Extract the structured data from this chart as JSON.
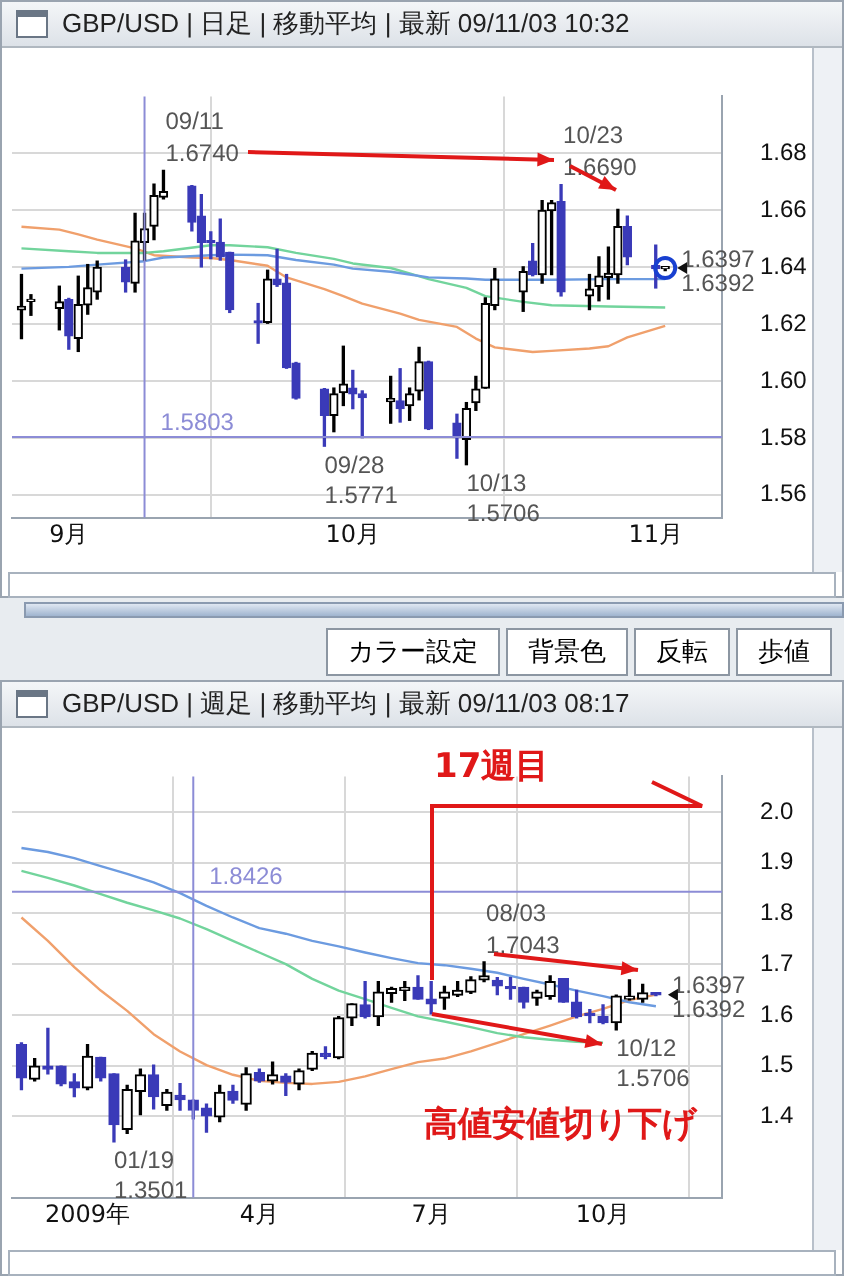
{
  "chart_data": [
    {
      "type": "candlestick",
      "title": "GBP/USD | 日足 | 移動平均 | 最新 09/11/03 10:32",
      "colors": [
        "#000000",
        "#000000",
        "#000000",
        "#3a3ab8",
        "#000000",
        "#000000",
        "#000000",
        "#3a3ab8",
        "#000000",
        "#000000",
        "#000000",
        "#000000",
        "#3a3ab8",
        "#3a3ab8",
        "#3a3ab8",
        "#3a3ab8",
        "#3a3ab8",
        "#3a3ab8",
        "#000000",
        "#3a3ab8",
        "#3a3ab8",
        "#3a3ab8",
        "#3a3ab8",
        "#000000",
        "#000000",
        "#3a3ab8",
        "#3a3ab8",
        "#000000",
        "#3a3ab8",
        "#000000",
        "#000000",
        "#3a3ab8",
        "#3a3ab8",
        "#000000",
        "#000000",
        "#000000",
        "#000000",
        "#000000",
        "#3a3ab8",
        "#000000",
        "#000000",
        "#3a3ab8",
        "#000000",
        "#000000",
        "#000000",
        "#000000",
        "#3a3ab8",
        "#3a3ab8",
        "#000000"
      ],
      "x": [
        "2009-08-27",
        "2009-08-28",
        "2009-08-31",
        "2009-09-01",
        "2009-09-02",
        "2009-09-03",
        "2009-09-04",
        "2009-09-07",
        "2009-09-08",
        "2009-09-09",
        "2009-09-10",
        "2009-09-11",
        "2009-09-14",
        "2009-09-15",
        "2009-09-16",
        "2009-09-17",
        "2009-09-18",
        "2009-09-21",
        "2009-09-22",
        "2009-09-23",
        "2009-09-24",
        "2009-09-25",
        "2009-09-28",
        "2009-09-29",
        "2009-09-30",
        "2009-10-01",
        "2009-10-02",
        "2009-10-05",
        "2009-10-06",
        "2009-10-07",
        "2009-10-08",
        "2009-10-09",
        "2009-10-12",
        "2009-10-13",
        "2009-10-14",
        "2009-10-15",
        "2009-10-16",
        "2009-10-19",
        "2009-10-20",
        "2009-10-21",
        "2009-10-22",
        "2009-10-23",
        "2009-10-26",
        "2009-10-27",
        "2009-10-28",
        "2009-10-29",
        "2009-10-30",
        "2009-11-02",
        "2009-11-03"
      ],
      "ohlc": [
        [
          1.625,
          1.6374,
          1.6149,
          1.6262
        ],
        [
          1.628,
          1.6303,
          1.6231,
          1.6285
        ],
        [
          1.6255,
          1.6333,
          1.618,
          1.6278
        ],
        [
          1.6286,
          1.629,
          1.6112,
          1.6159
        ],
        [
          1.615,
          1.6368,
          1.6104,
          1.6268
        ],
        [
          1.6268,
          1.6409,
          1.6235,
          1.6327
        ],
        [
          1.6313,
          1.6421,
          1.6288,
          1.6399
        ],
        [
          1.6399,
          1.6425,
          1.6313,
          1.6348
        ],
        [
          1.6344,
          1.6589,
          1.6313,
          1.6491
        ],
        [
          1.6487,
          1.6589,
          1.6425,
          1.6534
        ],
        [
          1.6544,
          1.6692,
          1.6497,
          1.6651
        ],
        [
          1.6646,
          1.674,
          1.664,
          1.6665
        ],
        [
          1.6685,
          1.6686,
          1.6528,
          1.6558
        ],
        [
          1.6579,
          1.6655,
          1.6401,
          1.6487
        ],
        [
          1.6493,
          1.6524,
          1.643,
          1.6486
        ],
        [
          1.6487,
          1.6569,
          1.6425,
          1.6436
        ],
        [
          1.6452,
          1.6452,
          1.6241,
          1.6251
        ],
        [
          1.6208,
          1.6272,
          1.6133,
          1.6204
        ],
        [
          1.6206,
          1.6389,
          1.6203,
          1.6358
        ],
        [
          1.6358,
          1.6462,
          1.6333,
          1.6339
        ],
        [
          1.6344,
          1.6374,
          1.6045,
          1.6047
        ],
        [
          1.6063,
          1.6065,
          1.5937,
          1.594
        ],
        [
          1.5971,
          1.5973,
          1.5771,
          1.5879
        ],
        [
          1.5879,
          1.5975,
          1.5822,
          1.5955
        ],
        [
          1.5959,
          1.6122,
          1.5914,
          1.5989
        ],
        [
          1.5975,
          1.6037,
          1.5903,
          1.5955
        ],
        [
          1.5955,
          1.5965,
          1.5801,
          1.5942
        ],
        [
          1.5928,
          1.6016,
          1.5852,
          1.5938
        ],
        [
          1.593,
          1.6043,
          1.5856,
          1.5903
        ],
        [
          1.5914,
          1.5975,
          1.5862,
          1.5955
        ],
        [
          1.5965,
          1.6118,
          1.5934,
          1.6067
        ],
        [
          1.6067,
          1.6069,
          1.583,
          1.5832
        ],
        [
          1.5852,
          1.5883,
          1.5729,
          1.5801
        ],
        [
          1.5795,
          1.5924,
          1.5706,
          1.5903
        ],
        [
          1.5924,
          1.6016,
          1.5897,
          1.5971
        ],
        [
          1.5975,
          1.6292,
          1.5975,
          1.6272
        ],
        [
          1.6266,
          1.6395,
          1.6251,
          1.6358
        ],
        [
          1.6313,
          1.6401,
          1.6245,
          1.6384
        ],
        [
          1.6421,
          1.6483,
          1.637,
          1.6374
        ],
        [
          1.6374,
          1.6634,
          1.6344,
          1.6599
        ],
        [
          1.6599,
          1.6634,
          1.6374,
          1.6626
        ],
        [
          1.663,
          1.669,
          1.6299,
          1.6313
        ],
        [
          1.6299,
          1.6374,
          1.6251,
          1.6323
        ],
        [
          1.6333,
          1.6436,
          1.6282,
          1.6368
        ],
        [
          1.6364,
          1.647,
          1.6288,
          1.6378
        ],
        [
          1.6374,
          1.6603,
          1.6344,
          1.6542
        ],
        [
          1.6542,
          1.6579,
          1.6409,
          1.6436
        ],
        [
          1.6405,
          1.6477,
          1.6327,
          1.6395
        ],
        [
          1.6395,
          1.64,
          1.6388,
          1.6397
        ]
      ],
      "series": [
        {
          "type": "line",
          "color": "#6c9be0",
          "x": [
            "2009-08-27",
            "2009-09-01",
            "2009-09-04",
            "2009-09-09",
            "2009-09-11",
            "2009-09-16",
            "2009-09-18",
            "2009-09-22",
            "2009-09-25",
            "2009-09-29",
            "2009-10-01",
            "2009-10-05",
            "2009-10-07",
            "2009-10-09",
            "2009-10-13",
            "2009-10-15",
            "2009-10-19",
            "2009-10-22",
            "2009-10-28",
            "2009-11-03"
          ],
          "values": [
            1.6395,
            1.6401,
            1.6409,
            1.6421,
            1.6434,
            1.6442,
            1.6444,
            1.6442,
            1.6425,
            1.6409,
            1.6395,
            1.6384,
            1.6374,
            1.6364,
            1.636,
            1.6356,
            1.6356,
            1.6356,
            1.6358,
            1.6358
          ]
        },
        {
          "type": "line",
          "color": "#72d49c",
          "x": [
            "2009-08-27",
            "2009-09-01",
            "2009-09-04",
            "2009-09-09",
            "2009-09-11",
            "2009-09-16",
            "2009-09-18",
            "2009-09-22",
            "2009-09-25",
            "2009-09-29",
            "2009-10-01",
            "2009-10-05",
            "2009-10-07",
            "2009-10-09",
            "2009-10-13",
            "2009-10-15",
            "2009-10-19",
            "2009-10-22",
            "2009-10-28",
            "2009-11-03"
          ],
          "values": [
            1.6466,
            1.6456,
            1.645,
            1.645,
            1.6456,
            1.6477,
            1.6477,
            1.647,
            1.645,
            1.6429,
            1.6413,
            1.6397,
            1.6378,
            1.6358,
            1.6327,
            1.6298,
            1.6278,
            1.6266,
            1.6262,
            1.6258
          ]
        },
        {
          "type": "line",
          "color": "#f0a06c",
          "x": [
            "2009-08-27",
            "2009-08-31",
            "2009-09-02",
            "2009-09-04",
            "2009-09-08",
            "2009-09-10",
            "2009-09-14",
            "2009-09-16",
            "2009-09-18",
            "2009-09-22",
            "2009-09-24",
            "2009-09-28",
            "2009-09-30",
            "2009-10-02",
            "2009-10-06",
            "2009-10-08",
            "2009-10-12",
            "2009-10-14",
            "2009-10-16",
            "2009-10-20",
            "2009-10-22",
            "2009-10-26",
            "2009-10-28",
            "2009-10-30",
            "2009-11-03"
          ],
          "values": [
            1.6542,
            1.6532,
            1.6515,
            1.6497,
            1.6466,
            1.6442,
            1.6434,
            1.6432,
            1.6425,
            1.6405,
            1.6364,
            1.6323,
            1.6298,
            1.6272,
            1.6237,
            1.6215,
            1.619,
            1.6149,
            1.6118,
            1.6102,
            1.6106,
            1.6114,
            1.6122,
            1.6153,
            1.6194
          ]
        }
      ],
      "xlim": [
        "2009-08-26",
        "2009-11-09"
      ],
      "xticks": [
        {
          "value": "2009-09-01",
          "label": "9月"
        },
        {
          "value": "2009-10-01",
          "label": "10月"
        },
        {
          "value": "2009-11-02",
          "label": "11月"
        }
      ],
      "ylim": [
        1.552,
        1.7
      ],
      "yticks": [
        1.56,
        1.58,
        {
          "value": 1.6,
          "label": "1.60"
        },
        1.62,
        1.64,
        1.66,
        1.68
      ],
      "grid": true,
      "ref_lines": [
        {
          "axis": "y",
          "value": 1.5803,
          "label": "1.5803",
          "color": "#8c8cd6"
        },
        {
          "axis": "x",
          "value": "2009-09-09",
          "color": "#8c8cd6"
        }
      ],
      "annotations": [
        {
          "text": "09/11\n1.6740",
          "x": "2009-09-11",
          "y": 1.674
        },
        {
          "text": "10/23\n1.6690",
          "x": "2009-10-23",
          "y": 1.669
        },
        {
          "text": "09/28\n1.5771",
          "x": "2009-09-28",
          "y": 1.5771
        },
        {
          "text": "10/13\n1.5706",
          "x": "2009-10-13",
          "y": 1.5706
        },
        {
          "text": "1.6397\n1.6392",
          "x": "2009-11-03",
          "y": 1.6397
        }
      ]
    },
    {
      "type": "other",
      "annotations": [
        "カラー設定",
        "背景色",
        "反転",
        "歩値"
      ]
    },
    {
      "type": "candlestick",
      "title": "GBP/USD | 週足 | 移動平均 | 最新 09/11/03 08:17",
      "colors": [
        "#3a3ab8",
        "#000000",
        "#3a3ab8",
        "#3a3ab8",
        "#3a3ab8",
        "#000000",
        "#3a3ab8",
        "#3a3ab8",
        "#000000",
        "#000000",
        "#3a3ab8",
        "#000000",
        "#3a3ab8",
        "#3a3ab8",
        "#3a3ab8",
        "#000000",
        "#3a3ab8",
        "#000000",
        "#3a3ab8",
        "#000000",
        "#3a3ab8",
        "#000000",
        "#000000",
        "#3a3ab8",
        "#000000",
        "#000000",
        "#3a3ab8",
        "#000000",
        "#000000",
        "#000000",
        "#3a3ab8",
        "#3a3ab8",
        "#000000",
        "#000000",
        "#000000",
        "#000000",
        "#3a3ab8",
        "#3a3ab8",
        "#3a3ab8",
        "#000000",
        "#000000",
        "#3a3ab8",
        "#3a3ab8",
        "#3a3ab8",
        "#3a3ab8",
        "#000000",
        "#000000",
        "#000000",
        "#3a3ab8"
      ],
      "x": [
        "2008-12-01",
        "2008-12-08",
        "2008-12-15",
        "2008-12-22",
        "2008-12-29",
        "2009-01-05",
        "2009-01-12",
        "2009-01-19",
        "2009-01-26",
        "2009-02-02",
        "2009-02-09",
        "2009-02-16",
        "2009-02-23",
        "2009-03-02",
        "2009-03-09",
        "2009-03-16",
        "2009-03-23",
        "2009-03-30",
        "2009-04-06",
        "2009-04-13",
        "2009-04-20",
        "2009-04-27",
        "2009-05-04",
        "2009-05-11",
        "2009-05-18",
        "2009-05-25",
        "2009-06-01",
        "2009-06-08",
        "2009-06-15",
        "2009-06-22",
        "2009-06-29",
        "2009-07-06",
        "2009-07-13",
        "2009-07-20",
        "2009-07-27",
        "2009-08-03",
        "2009-08-10",
        "2009-08-17",
        "2009-08-24",
        "2009-08-31",
        "2009-09-07",
        "2009-09-14",
        "2009-09-21",
        "2009-09-28",
        "2009-10-05",
        "2009-10-12",
        "2009-10-19",
        "2009-10-26",
        "2009-11-02"
      ],
      "ohlc": [
        [
          1.5414,
          1.5448,
          1.4529,
          1.4759
        ],
        [
          1.4736,
          1.5138,
          1.4701,
          1.4989
        ],
        [
          1.4989,
          1.5736,
          1.4839,
          1.4931
        ],
        [
          1.4989,
          1.4989,
          1.4609,
          1.4644
        ],
        [
          1.4678,
          1.4839,
          1.4391,
          1.4563
        ],
        [
          1.4563,
          1.5414,
          1.4529,
          1.5184
        ],
        [
          1.5161,
          1.5161,
          1.4701,
          1.4759
        ],
        [
          1.4839,
          1.4839,
          1.3501,
          1.3839
        ],
        [
          1.3747,
          1.4609,
          1.3667,
          1.4529
        ],
        [
          1.4494,
          1.4931,
          1.4034,
          1.4816
        ],
        [
          1.4816,
          1.5011,
          1.4149,
          1.4391
        ],
        [
          1.4218,
          1.4529,
          1.4126,
          1.4471
        ],
        [
          1.4414,
          1.4644,
          1.4126,
          1.4333
        ],
        [
          1.4322,
          1.4322,
          1.3954,
          1.4126
        ],
        [
          1.4161,
          1.4241,
          1.369,
          1.4011
        ],
        [
          1.3989,
          1.4609,
          1.3897,
          1.4471
        ],
        [
          1.4494,
          1.4609,
          1.4264,
          1.4322
        ],
        [
          1.4241,
          1.4954,
          1.4126,
          1.4839
        ],
        [
          1.4862,
          1.4931,
          1.4678,
          1.4701
        ],
        [
          1.4701,
          1.5069,
          1.4644,
          1.4816
        ],
        [
          1.4793,
          1.4839,
          1.4414,
          1.4678
        ],
        [
          1.4644,
          1.4931,
          1.4529,
          1.4897
        ],
        [
          1.4931,
          1.5276,
          1.4908,
          1.5241
        ],
        [
          1.5241,
          1.5368,
          1.5138,
          1.5184
        ],
        [
          1.5161,
          1.5966,
          1.5138,
          1.5943
        ],
        [
          1.5943,
          1.6218,
          1.5793,
          1.6218
        ],
        [
          1.6195,
          1.6655,
          1.5943,
          1.5966
        ],
        [
          1.5966,
          1.6655,
          1.5793,
          1.6448
        ],
        [
          1.6425,
          1.654,
          1.6253,
          1.6517
        ],
        [
          1.6483,
          1.6655,
          1.6287,
          1.654
        ],
        [
          1.654,
          1.677,
          1.631,
          1.631
        ],
        [
          1.631,
          1.6655,
          1.6023,
          1.6218
        ],
        [
          1.6333,
          1.6563,
          1.6115,
          1.6448
        ],
        [
          1.6391,
          1.6655,
          1.6368,
          1.6483
        ],
        [
          1.6448,
          1.6747,
          1.6425,
          1.669
        ],
        [
          1.669,
          1.7043,
          1.6655,
          1.677
        ],
        [
          1.6678,
          1.6736,
          1.6402,
          1.6575
        ],
        [
          1.654,
          1.6736,
          1.631,
          1.6517
        ],
        [
          1.654,
          1.654,
          1.6138,
          1.6253
        ],
        [
          1.6333,
          1.6483,
          1.6195,
          1.6448
        ],
        [
          1.6368,
          1.677,
          1.631,
          1.6655
        ],
        [
          1.6713,
          1.6713,
          1.6253,
          1.6253
        ],
        [
          1.6253,
          1.6483,
          1.5943,
          1.5966
        ],
        [
          1.6011,
          1.6103,
          1.5851,
          1.5989
        ],
        [
          1.5966,
          1.6195,
          1.5828,
          1.5851
        ],
        [
          1.5851,
          1.6391,
          1.5706,
          1.6368
        ],
        [
          1.631,
          1.669,
          1.6299,
          1.6368
        ],
        [
          1.631,
          1.6603,
          1.6251,
          1.6436
        ],
        [
          1.6402,
          1.6425,
          1.638,
          1.6397
        ]
      ],
      "series": [
        {
          "type": "line",
          "color": "#6c9be0",
          "x": [
            "2008-12-01",
            "2008-12-15",
            "2008-12-29",
            "2009-01-12",
            "2009-01-26",
            "2009-02-09",
            "2009-02-23",
            "2009-03-09",
            "2009-03-23",
            "2009-04-06",
            "2009-04-20",
            "2009-05-04",
            "2009-05-18",
            "2009-06-01",
            "2009-06-15",
            "2009-06-29",
            "2009-07-13",
            "2009-07-27",
            "2009-08-10",
            "2009-08-24",
            "2009-09-07",
            "2009-09-21",
            "2009-10-05",
            "2009-10-19",
            "2009-11-02"
          ],
          "values": [
            1.929,
            1.921,
            1.909,
            1.893,
            1.878,
            1.861,
            1.84,
            1.815,
            1.792,
            1.771,
            1.76,
            1.746,
            1.735,
            1.723,
            1.712,
            1.702,
            1.698,
            1.691,
            1.683,
            1.671,
            1.66,
            1.648,
            1.637,
            1.625,
            1.617
          ]
        },
        {
          "type": "line",
          "color": "#72d49c",
          "x": [
            "2008-12-01",
            "2008-12-15",
            "2008-12-29",
            "2009-01-12",
            "2009-01-26",
            "2009-02-09",
            "2009-02-23",
            "2009-03-09",
            "2009-03-23",
            "2009-04-06",
            "2009-04-20",
            "2009-05-04",
            "2009-05-18",
            "2009-06-01",
            "2009-06-15",
            "2009-06-29",
            "2009-07-13",
            "2009-07-27",
            "2009-08-10",
            "2009-08-24",
            "2009-09-07",
            "2009-09-21",
            "2009-10-05"
          ],
          "values": [
            1.884,
            1.87,
            1.855,
            1.838,
            1.821,
            1.806,
            1.79,
            1.769,
            1.746,
            1.723,
            1.7,
            1.671,
            1.648,
            1.631,
            1.614,
            1.597,
            1.587,
            1.576,
            1.564,
            1.556,
            1.551,
            1.547,
            1.545
          ]
        },
        {
          "type": "line",
          "color": "#f0a06c",
          "x": [
            "2008-12-01",
            "2008-12-15",
            "2008-12-29",
            "2009-01-12",
            "2009-01-26",
            "2009-02-09",
            "2009-02-23",
            "2009-03-09",
            "2009-03-23",
            "2009-04-06",
            "2009-04-20",
            "2009-05-04",
            "2009-05-18",
            "2009-06-01",
            "2009-06-15",
            "2009-06-29",
            "2009-07-13",
            "2009-07-27",
            "2009-08-10",
            "2009-08-24",
            "2009-09-07",
            "2009-09-21",
            "2009-10-05",
            "2009-10-19",
            "2009-11-02"
          ],
          "values": [
            1.792,
            1.746,
            1.694,
            1.648,
            1.608,
            1.562,
            1.528,
            1.501,
            1.482,
            1.47,
            1.466,
            1.464,
            1.468,
            1.479,
            1.493,
            1.507,
            1.514,
            1.528,
            1.545,
            1.562,
            1.579,
            1.597,
            1.612,
            1.629,
            1.64
          ]
        }
      ],
      "xlim": [
        "2008-11-26",
        "2009-12-07"
      ],
      "xticks": [
        {
          "value": "2009-01-05",
          "label": "2009年"
        },
        {
          "value": "2009-04-06",
          "label": "4月"
        },
        {
          "value": "2009-07-06",
          "label": "7月"
        },
        {
          "value": "2009-10-05",
          "label": "10月"
        }
      ],
      "ylim": [
        1.24,
        2.07
      ],
      "yticks": [
        1.4,
        1.5,
        1.6,
        1.7,
        1.8,
        1.9,
        {
          "value": 2.0,
          "label": "2.0"
        }
      ],
      "grid": true,
      "ref_lines": [
        {
          "axis": "y",
          "value": 1.8426,
          "label": "1.8426",
          "color": "#8c8cd6"
        },
        {
          "axis": "x",
          "value": "2009-03-02",
          "color": "#8c8cd6"
        }
      ],
      "annotations": [
        {
          "text": "01/19\n1.3501",
          "x": "2009-01-19",
          "y": 1.3501
        },
        {
          "text": "08/03\n1.7043",
          "x": "2009-08-03",
          "y": 1.7043
        },
        {
          "text": "10/12\n1.5706",
          "x": "2009-10-12",
          "y": 1.5706
        },
        {
          "text": "1.6397\n1.6392",
          "x": "2009-11-02",
          "y": 1.6397
        },
        "17週目",
        "高値安値切り下げ"
      ]
    }
  ]
}
